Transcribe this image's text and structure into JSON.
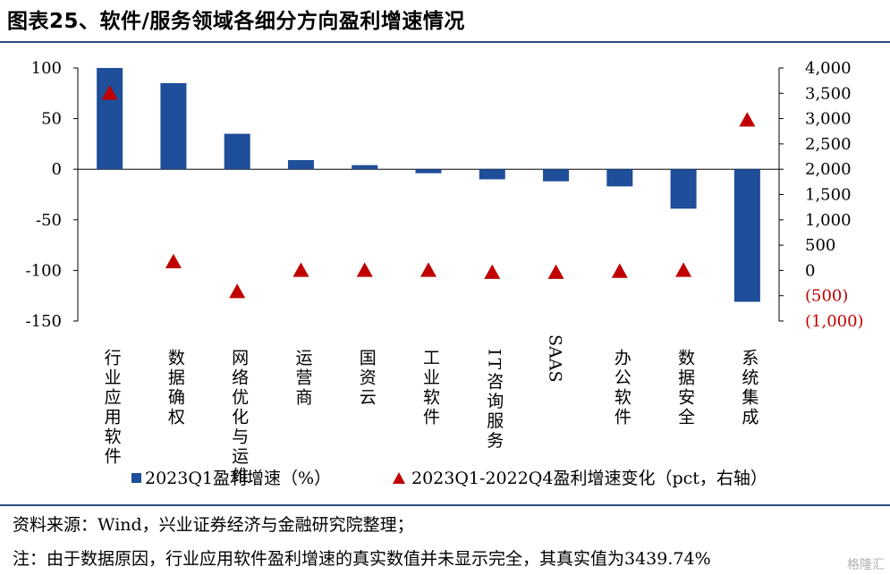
{
  "title": "图表25、软件/服务领域各细分方向盈利增速情况",
  "source_note": "资料来源：Wind，兴业证券经济与金融研究院整理；",
  "footnote": "注：由于数据原因，行业应用软件盈利增速的真实数值并未显示完全，其真实值为3439.74%",
  "watermark": "格隆汇",
  "chart_data": {
    "type": "bar",
    "categories": [
      "行业应用软件",
      "数据确权",
      "网络优化与运维",
      "运营商",
      "国资云",
      "工业软件",
      "IT咨询服务",
      "SAAS",
      "办公软件",
      "数据安全",
      "系统集成"
    ],
    "series": [
      {
        "name": "2023Q1盈利增速（%）",
        "type": "bar",
        "axis": "left",
        "color": "#1f4e9a",
        "values": [
          100,
          85,
          35,
          9,
          4,
          -4,
          -10,
          -12,
          -17,
          -39,
          -131
        ]
      },
      {
        "name": "2023Q1-2022Q4盈利增速变化（pct，右轴）",
        "type": "marker",
        "marker": "triangle",
        "axis": "right",
        "color": "#c00000",
        "values": [
          3500,
          170,
          -420,
          0,
          0,
          0,
          -40,
          -40,
          -20,
          0,
          2970
        ]
      }
    ],
    "left_axis": {
      "range": [
        -150,
        100
      ],
      "ticks": [
        100,
        50,
        0,
        -50,
        -100,
        -150
      ],
      "tick_labels": [
        "100",
        "50",
        "0",
        "-50",
        "-100",
        "-150"
      ]
    },
    "right_axis": {
      "range": [
        -1000,
        4000
      ],
      "ticks": [
        4000,
        3500,
        3000,
        2500,
        2000,
        1500,
        1000,
        500,
        0,
        -500,
        -1000
      ],
      "tick_labels": [
        "4,000",
        "3,500",
        "3,000",
        "2,500",
        "2,000",
        "1,500",
        "1,000",
        "500",
        "0",
        "(500)",
        "(1,000)"
      ],
      "negative_label_color": "#c00000"
    },
    "legend_position": "bottom",
    "grid": false
  }
}
